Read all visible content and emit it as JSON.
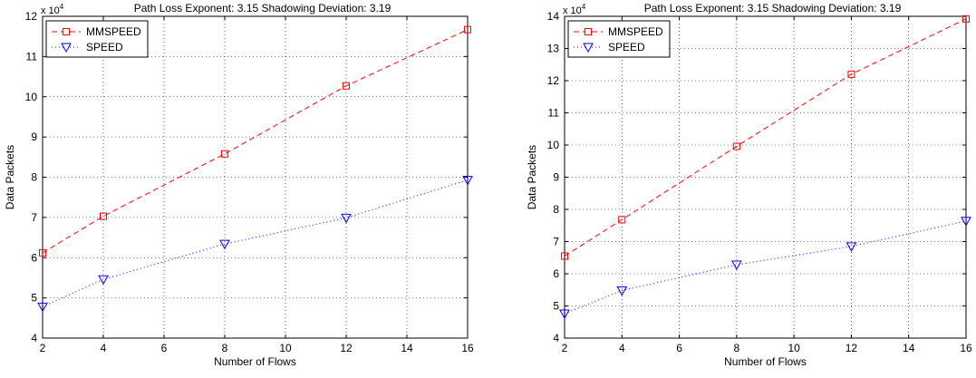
{
  "chart_data": [
    {
      "type": "line",
      "title": "Path Loss Exponent: 3.15 Shadowing Deviation: 3.19",
      "xlabel": "Number of Flows",
      "ylabel": "Data Packets",
      "y_exponent_base": "x 10",
      "y_exponent_power": "4",
      "xlim": [
        2,
        16
      ],
      "ylim": [
        4,
        12
      ],
      "xticks": [
        2,
        4,
        6,
        8,
        10,
        12,
        14,
        16
      ],
      "yticks": [
        4,
        5,
        6,
        7,
        8,
        9,
        10,
        11,
        12
      ],
      "grid": true,
      "legend_position": "top-left",
      "x": [
        2,
        4,
        8,
        12,
        16
      ],
      "series": [
        {
          "name": "MMSPEED",
          "values": [
            6.12,
            7.03,
            8.58,
            10.27,
            11.67
          ],
          "color": "#ff0000",
          "marker": "square",
          "linestyle": "dashed"
        },
        {
          "name": "SPEED",
          "values": [
            4.78,
            5.46,
            6.34,
            6.99,
            7.93
          ],
          "color": "#0000ff",
          "marker": "triangle-down",
          "linestyle": "dotted"
        }
      ]
    },
    {
      "type": "line",
      "title": "Path Loss Exponent: 3.15 Shadowing Deviation: 3.19",
      "xlabel": "Number of Flows",
      "ylabel": "Data Packets",
      "y_exponent_base": "x 10",
      "y_exponent_power": "4",
      "xlim": [
        2,
        16
      ],
      "ylim": [
        4,
        14
      ],
      "xticks": [
        2,
        4,
        6,
        8,
        10,
        12,
        14,
        16
      ],
      "yticks": [
        4,
        5,
        6,
        7,
        8,
        9,
        10,
        11,
        12,
        13,
        14
      ],
      "grid": true,
      "legend_position": "top-left",
      "x": [
        2,
        4,
        8,
        12,
        16
      ],
      "series": [
        {
          "name": "MMSPEED",
          "values": [
            6.55,
            7.68,
            9.96,
            12.2,
            13.92
          ],
          "color": "#ff0000",
          "marker": "square",
          "linestyle": "dashed"
        },
        {
          "name": "SPEED",
          "values": [
            4.76,
            5.48,
            6.28,
            6.85,
            7.64
          ],
          "color": "#0000ff",
          "marker": "triangle-down",
          "linestyle": "dotted"
        }
      ]
    }
  ]
}
